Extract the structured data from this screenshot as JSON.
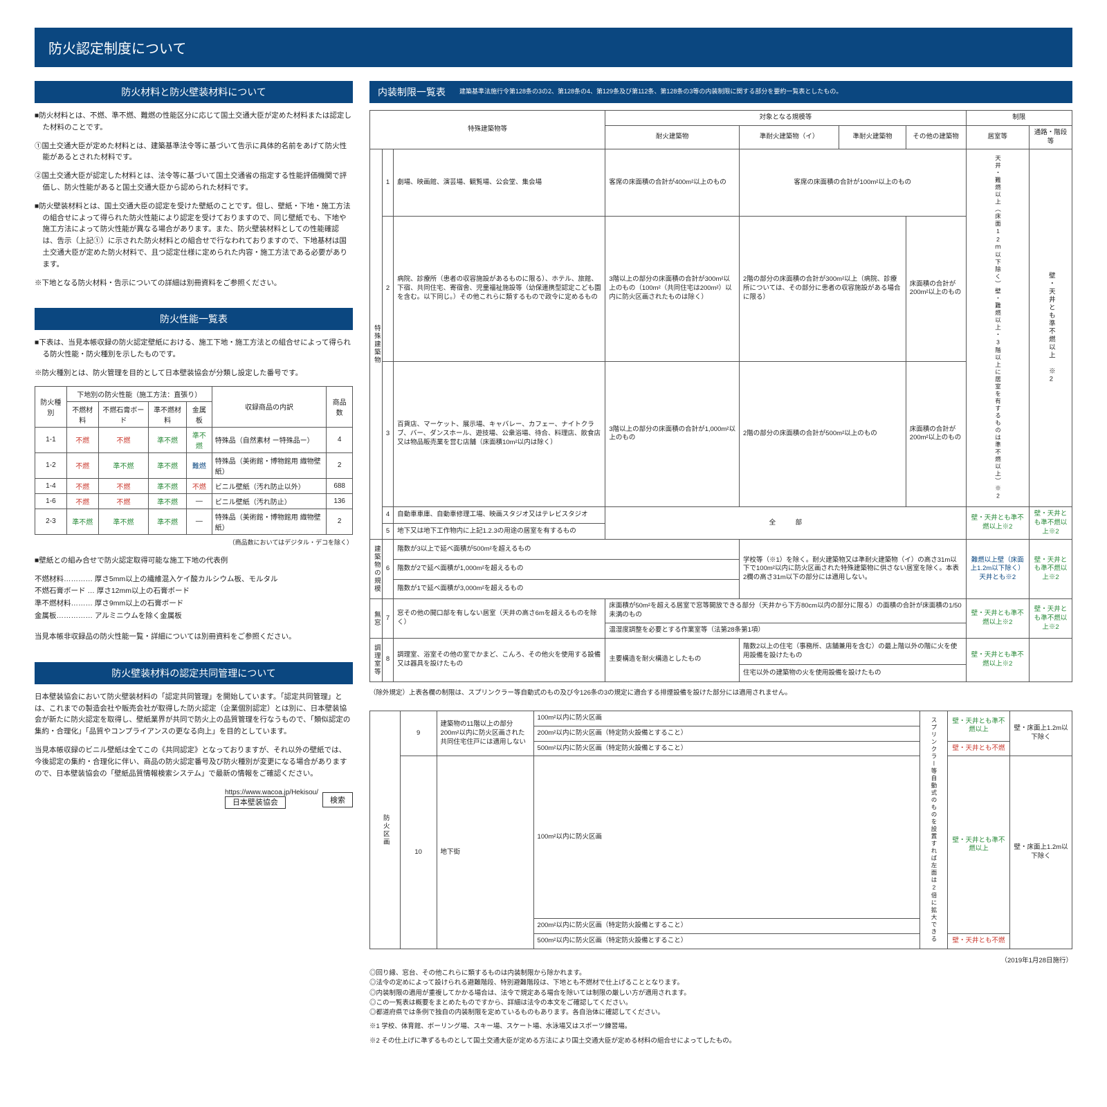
{
  "title": "防火認定制度について",
  "left": {
    "h1": "防火材料と防火壁装材料について",
    "p1": "防火材料とは、不燃、準不燃、難燃の性能区分に応じて国土交通大臣が定めた材料または認定した材料のことです。",
    "p1a": "国土交通大臣が定めた材料とは、建築基準法令等に基づいて告示に具体的名前をあげて防火性能があるとされた材料です。",
    "p1b": "国土交通大臣が認定した材料とは、法令等に基づいて国土交通省の指定する性能評価機関で評価し、防火性能があると国土交通大臣から認められた材料です。",
    "p2": "防火壁装材料とは、国土交通大臣の認定を受けた壁紙のことです。但し、壁紙・下地・施工方法の組合せによって得られた防火性能により認定を受けておりますので、同じ壁紙でも、下地や施工方法によって防火性能が異なる場合があります。また、防火壁装材料としての性能確認は、告示（上記①）に示された防火材料との組合せで行なわれておりますので、下地基材は国土交通大臣が定めた防火材料で、且つ認定仕様に定められた内容・施工方法である必要があります。",
    "p2a": "下地となる防火材料・告示についての詳細は別冊資料をご参照ください。",
    "h2": "防火性能一覧表",
    "p3": "下表は、当見本帳収録の防火認定壁紙における、施工下地・施工方法との組合せによって得られる防火性能・防火種別を示したものです。",
    "p3a": "防火種別とは、防火管理を目的として日本壁装協会が分類し設定した番号です。",
    "tbl": {
      "h_type": "防火種別",
      "h_base": "下地別の防火性能（施工方法：直張り）",
      "h_desc": "収録商品の内訳",
      "h_cnt": "商品数",
      "sub": [
        "不燃材料",
        "不燃石膏ボード",
        "準不燃材料",
        "金属板"
      ],
      "rows": [
        {
          "k": "1-1",
          "c": [
            "不燃",
            "不燃",
            "準不燃",
            "準不燃"
          ],
          "cls": [
            "c-red",
            "c-red",
            "c-green",
            "c-green"
          ],
          "d": "特殊品（自然素材 ー特殊品ー）",
          "n": "4"
        },
        {
          "k": "1-2",
          "c": [
            "不燃",
            "準不燃",
            "準不燃",
            "難燃"
          ],
          "cls": [
            "c-red",
            "c-green",
            "c-green",
            "c-blue"
          ],
          "d": "特殊品（美術館・博物館用 織物壁紙）",
          "n": "2"
        },
        {
          "k": "1-4",
          "c": [
            "不燃",
            "不燃",
            "準不燃",
            "不燃"
          ],
          "cls": [
            "c-red",
            "c-red",
            "c-green",
            "c-red"
          ],
          "d": "ビニル壁紙（汚れ防止以外）",
          "n": "688"
        },
        {
          "k": "1-6",
          "c": [
            "不燃",
            "不燃",
            "準不燃",
            "―"
          ],
          "cls": [
            "c-red",
            "c-red",
            "c-green",
            ""
          ],
          "d": "ビニル壁紙（汚れ防止）",
          "n": "136"
        },
        {
          "k": "2-3",
          "c": [
            "準不燃",
            "準不燃",
            "準不燃",
            "―"
          ],
          "cls": [
            "c-green",
            "c-green",
            "c-green",
            ""
          ],
          "d": "特殊品（美術館・博物館用 織物壁紙）",
          "n": "2"
        }
      ],
      "foot": "（商品数においてはデジタル・デコを除く）"
    },
    "defs_h": "壁紙との組み合せで防火認定取得可能な施工下地の代表例",
    "defs": [
      "不燃材料………… 厚さ5mm以上の繊維混入ケイ酸カルシウム板、モルタル",
      "不燃石膏ボード … 厚さ12mm以上の石膏ボード",
      "準不燃材料……… 厚さ9mm以上の石膏ボード",
      "金属板…………… アルミニウムを除く金属板"
    ],
    "defs_foot": "当見本帳非収録品の防火性能一覧・詳細については別冊資料をご参照ください。",
    "h3": "防火壁装材料の認定共同管理について",
    "p4": "日本壁装協会において防火壁装材料の「認定共同管理」を開始しています。「認定共同管理」とは、これまでの製造会社や販売会社が取得した防火認定（企業個別認定）とは別に、日本壁装協会が新たに防火認定を取得し、壁紙業界が共同で防火上の品質管理を行なうもので、「類似認定の集約・合理化」「品質やコンプライアンスの更なる向上」を目的としています。",
    "p5": "当見本帳収録のビニル壁紙は全てこの《共同認定》となっておりますが、それ以外の壁紙では、今後認定の集約・合理化に伴い、商品の防火認定番号及び防火種別が変更になる場合がありますので、日本壁装協会の「壁紙品質情報検索システム」で最新の情報をご確認ください。",
    "url": "https://www.wacoa.jp/Hekisou/",
    "search_label": "日本壁装協会",
    "search_btn": "検索"
  },
  "right": {
    "h1": "内装制限一覧表",
    "h1_sub": "建築基準法施行令第128条の3の2、第128条の4、第129条及び第112条、第128条の3等の内装制限に関する部分を要約一覧表としたもの。",
    "tbl1": {
      "head": {
        "col1": "特殊建築物等",
        "col2": "対象となる規模等",
        "col3": "制限",
        "sub2": [
          "耐火建築物",
          "準耐火建築物（イ）",
          "準耐火建築物",
          "その他の建築物"
        ],
        "sub3": [
          "居室等",
          "通路・階段等"
        ]
      },
      "vcat": "特殊建築物",
      "r1": {
        "n": "1",
        "a": "劇場、映画館、演芸場、観覧場、公会堂、集会場",
        "b": "客席の床面積の合計が400m²以上のもの",
        "c": "客席の床面積の合計が100m²以上のもの",
        "limA": "天井・難燃以上（床面12ｍ以下除く）壁・難燃以上・3階以上に居室を有するものは準不燃以上）※2",
        "limB": "壁・天井とも準不燃以上　※2"
      },
      "r2": {
        "n": "2",
        "a": "病院、診療所（患者の収容施設があるものに限る）、ホテル、旅館、下宿、共同住宅、寄宿舎、児童福祉施設等（幼保連携型認定こども園を含む。以下同じ。）その他これらに類するもので政令に定めるもの",
        "b": "3階以上の部分の床面積の合計が300m²以上のもの（100m²（共同住宅は200m²）以内に防火区画されたものは除く）",
        "c": "2階の部分の床面積の合計が300m²以上（病院、診療所については、その部分に患者の収容施設がある場合に限る）",
        "d": "床面積の合計が200m²以上のもの"
      },
      "r3": {
        "n": "3",
        "a": "百貨店、マーケット、展示場、キャバレー、カフェー、ナイトクラブ、バー、ダンスホール、遊技場、公衆浴場、待合、料理店、飲食店又は物品販売業を営む店舗（床面積10m²以内は除く）",
        "b": "3階以上の部分の床面積の合計が1,000m²以上のもの",
        "c": "2階の部分の床面積の合計が500m²以上のもの",
        "d": "床面積の合計が200m²以上のもの"
      },
      "r4": {
        "n": "4",
        "a": "自動車車庫、自動車修理工場、映画スタジオ又はテレビスタジオ",
        "b": "全　　　部",
        "limA": "壁・天井とも準不燃以上※2",
        "limB": "壁・天井とも準不燃以上※2"
      },
      "r5": {
        "n": "5",
        "a": "地下又は地下工作物内に上記1.2.3の用途の居室を有するもの"
      },
      "vcat2": "建築物の規模",
      "r6": {
        "n": "6",
        "a1": "階数が3以上で延べ面積が500m²を超えるもの",
        "a2": "階数が2で延べ面積が1,000m²を超えるもの",
        "a3": "階数が1で延べ面積が3,000m²を超えるもの",
        "b": "学校等（※1）を除く。耐火建築物又は準耐火建築物（イ）の高さ31m以下で100m²以内に防火区画された特殊建築物に供さない居室を除く。本表2欄の高さ31m以下の部分には適用しない。",
        "limA": "難燃以上壁（床面上1.2m以下除く）天井とも※2",
        "limB": "壁・天井とも準不燃以上※2"
      },
      "vcat3": "無窓",
      "r7": {
        "n": "7",
        "a": "窓その他の開口部を有しない居室（天井の高さ6mを超えるものを除く）",
        "b1": "床面積が50m²を超える居室で窓等開放できる部分（天井から下方80cm以内の部分に限る）の面積の合計が床面積の1/50未満のもの",
        "b2": "温湿度調整を必要とする作業室等（法第28条第1項）",
        "limA": "壁・天井とも準不燃以上※2",
        "limB": "壁・天井とも準不燃以上※2"
      },
      "vcat4": "調理室等",
      "r8": {
        "n": "8",
        "a": "調理室、浴室その他の室でかまど、こんろ、その他火を使用する設備又は器具を設けたもの",
        "b1": "主要構造を耐火構造としたもの",
        "b2": "階数2以上の住宅（事務所、店舗兼用を含む）の最上階以外の階に火を使用設備を設けたもの",
        "b3": "住宅以外の建築物の火を使用設備を設けたもの",
        "limA": "壁・天井とも準不燃以上※2"
      },
      "foot": "（除外規定）上表各欄の制限は、スプリンクラー等自動式のもの及び令126条の3の規定に適合する排煙設備を設けた部分には適用されません。"
    },
    "tbl2": {
      "vcat": "防火区画",
      "r9": {
        "n": "9",
        "a": "建築物の11階以上の部分200m²以内に防火区画された共同住宅住戸には適用しない",
        "b1": "100m²以内に防火区画",
        "b2": "200m²以内に防火区画（特定防火設備とすること）",
        "b3": "500m²以内に防火区画（特定防火設備とすること）",
        "side": "スプリンクラー等自動式のものを設置すれば左面は2倍に拡大できる",
        "limA1": "壁・天井とも準不燃以上",
        "limA2": "壁・天井とも不燃",
        "limB": "壁・床面上1.2m以下除く"
      },
      "r10": {
        "n": "10",
        "a": "地下街",
        "b1": "100m²以内に防火区画",
        "b2": "200m²以内に防火区画（特定防火設備とすること）",
        "b3": "500m²以内に防火区画（特定防火設備とすること）",
        "limA1": "壁・天井とも準不燃以上",
        "limA2": "壁・天井とも不燃",
        "limB": "壁・床面上1.2m以下除く"
      }
    },
    "date": "（2019年1月28日施行）",
    "notes": [
      "回り縁、窓台、その他これらに類するものは内装制限から除かれます。",
      "法令の定めによって設けられる避難階段、特別避難階段は、下地とも不燃材で仕上げることとなります。",
      "内装制限の適用が重複してかかる場合は、法令で規定ある場合を除いては制限の厳しい方が適用されます。",
      "この一覧表は概要をまとめたものですから、詳細は法令の本文をご確認してください。",
      "都道府県では条例で独自の内装制限を定めているものもあります。各自治体に確認してください。"
    ],
    "foot1": "※1 学校、体育館、ボーリング場、スキー場、スケート場、水泳場又はスポーツ練習場。",
    "foot2": "※2 その仕上げに準ずるものとして国土交通大臣が定める方法により国土交通大臣が定める材料の組合せによってしたもの。"
  }
}
